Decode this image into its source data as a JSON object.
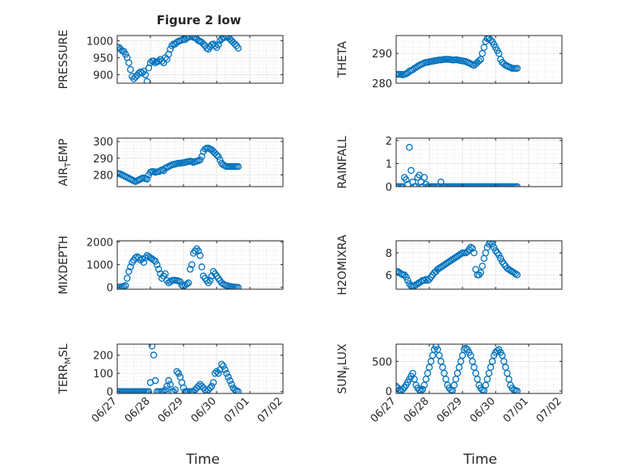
{
  "figure": {
    "title": "Figure 2 low",
    "xlabel": "Time"
  },
  "chart_data": [
    {
      "type": "scatter",
      "name": "pressure",
      "title": "Figure 2 low",
      "ylabel": {
        "main": "PRESSURE"
      },
      "xlim": [
        0,
        5
      ],
      "ylim": [
        875,
        1015
      ],
      "yticks": [
        900,
        950,
        1000
      ],
      "xtick_labels": [],
      "marker_color": "#0072BD",
      "grid": true,
      "x": [
        0,
        0.05,
        0.1,
        0.15,
        0.2,
        0.25,
        0.3,
        0.35,
        0.4,
        0.45,
        0.5,
        0.55,
        0.6,
        0.65,
        0.7,
        0.75,
        0.8,
        0.85,
        0.9,
        0.95,
        1,
        1.05,
        1.1,
        1.15,
        1.2,
        1.25,
        1.3,
        1.35,
        1.4,
        1.45,
        1.5,
        1.55,
        1.6,
        1.65,
        1.7,
        1.75,
        1.8,
        1.85,
        1.9,
        1.95,
        2,
        2.05,
        2.1,
        2.15,
        2.2,
        2.25,
        2.3,
        2.35,
        2.4,
        2.45,
        2.5,
        2.55,
        2.6,
        2.65,
        2.7,
        2.75,
        2.8,
        2.85,
        2.9,
        2.95,
        3,
        3.05,
        3.1,
        3.15,
        3.2,
        3.25,
        3.3,
        3.35,
        3.4,
        3.45,
        3.5,
        3.55,
        3.6,
        3.65
      ],
      "y": [
        980,
        980,
        975,
        970,
        968,
        960,
        950,
        935,
        915,
        895,
        888,
        893,
        898,
        904,
        908,
        905,
        910,
        900,
        880,
        920,
        935,
        940,
        940,
        935,
        938,
        940,
        945,
        940,
        935,
        950,
        945,
        960,
        975,
        985,
        990,
        990,
        995,
        998,
        1000,
        1002,
        1005,
        1003,
        1008,
        1010,
        1012,
        1013,
        1010,
        1008,
        1005,
        1000,
        998,
        995,
        990,
        985,
        978,
        975,
        982,
        988,
        990,
        985,
        980,
        988,
        1000,
        1005,
        1008,
        1010,
        1012,
        1010,
        1005,
        1000,
        995,
        990,
        985,
        978
      ]
    },
    {
      "type": "scatter",
      "name": "theta",
      "ylabel": {
        "main": "THETA"
      },
      "xlim": [
        0,
        5
      ],
      "ylim": [
        280,
        296
      ],
      "yticks": [
        280,
        290
      ],
      "xtick_labels": [],
      "marker_color": "#0072BD",
      "grid": true,
      "x": [
        0,
        0.05,
        0.1,
        0.15,
        0.2,
        0.25,
        0.3,
        0.35,
        0.4,
        0.45,
        0.5,
        0.55,
        0.6,
        0.65,
        0.7,
        0.75,
        0.8,
        0.85,
        0.9,
        0.95,
        1,
        1.05,
        1.1,
        1.15,
        1.2,
        1.25,
        1.3,
        1.35,
        1.4,
        1.45,
        1.5,
        1.55,
        1.6,
        1.65,
        1.7,
        1.75,
        1.8,
        1.85,
        1.9,
        1.95,
        2,
        2.05,
        2.1,
        2.15,
        2.2,
        2.25,
        2.3,
        2.35,
        2.4,
        2.45,
        2.5,
        2.55,
        2.6,
        2.65,
        2.7,
        2.75,
        2.8,
        2.85,
        2.9,
        2.95,
        3,
        3.05,
        3.1,
        3.15,
        3.2,
        3.25,
        3.3,
        3.35,
        3.4,
        3.45,
        3.5,
        3.55,
        3.6,
        3.65
      ],
      "y": [
        283,
        283,
        283,
        283,
        282.8,
        283,
        283.2,
        283.5,
        284,
        284.3,
        284.5,
        285,
        285.3,
        285.7,
        286,
        286.3,
        286.5,
        286.8,
        287,
        287,
        287.2,
        287.3,
        287.4,
        287.5,
        287.6,
        287.7,
        287.8,
        287.8,
        287.9,
        288,
        288,
        288,
        288,
        287.9,
        287.8,
        287.8,
        287.9,
        287.8,
        287.7,
        287.6,
        287.5,
        287.4,
        287.3,
        287,
        286.8,
        286.5,
        286.2,
        286,
        286.5,
        287,
        287.5,
        288,
        290,
        292,
        294,
        295,
        295,
        294.5,
        294,
        293,
        292,
        291,
        290,
        288,
        287,
        286.5,
        286,
        285.8,
        285.5,
        285.3,
        285,
        285,
        285,
        285
      ]
    },
    {
      "type": "scatter",
      "name": "air-temp",
      "ylabel": {
        "main": "AIR",
        "sub": "T",
        "rest": "EMP"
      },
      "xlim": [
        0,
        5
      ],
      "ylim": [
        273,
        302
      ],
      "yticks": [
        280,
        290,
        300
      ],
      "xtick_labels": [],
      "marker_color": "#0072BD",
      "grid": true,
      "x": [
        0,
        0.05,
        0.1,
        0.15,
        0.2,
        0.25,
        0.3,
        0.35,
        0.4,
        0.45,
        0.5,
        0.55,
        0.6,
        0.65,
        0.7,
        0.75,
        0.8,
        0.85,
        0.9,
        0.95,
        1,
        1.05,
        1.1,
        1.15,
        1.2,
        1.25,
        1.3,
        1.35,
        1.4,
        1.45,
        1.5,
        1.55,
        1.6,
        1.65,
        1.7,
        1.75,
        1.8,
        1.85,
        1.9,
        1.95,
        2,
        2.05,
        2.1,
        2.15,
        2.2,
        2.25,
        2.3,
        2.35,
        2.4,
        2.45,
        2.5,
        2.55,
        2.6,
        2.65,
        2.7,
        2.75,
        2.8,
        2.85,
        2.9,
        2.95,
        3,
        3.05,
        3.1,
        3.15,
        3.2,
        3.25,
        3.3,
        3.35,
        3.4,
        3.45,
        3.5,
        3.55,
        3.6,
        3.65
      ],
      "y": [
        281,
        280.8,
        280.5,
        280,
        279.5,
        279,
        278.5,
        278,
        277.5,
        277,
        276.5,
        276,
        276.5,
        277,
        277.5,
        278,
        278.2,
        277.8,
        277.5,
        280,
        281.5,
        282,
        282,
        281.5,
        281.8,
        282,
        282.5,
        283,
        282.5,
        284,
        284.5,
        285,
        285.5,
        286,
        286.3,
        286.5,
        286.8,
        287,
        287,
        287.2,
        287.3,
        287.5,
        287.8,
        288,
        288.2,
        288,
        287.5,
        288,
        288.2,
        288.5,
        289,
        291,
        294,
        295.5,
        296,
        296,
        295.5,
        295,
        294,
        293,
        292,
        291,
        289,
        287,
        286,
        285.5,
        285,
        285,
        285,
        285,
        285,
        285,
        285,
        285
      ]
    },
    {
      "type": "scatter",
      "name": "rainfall",
      "ylabel": {
        "main": "RAINFALL"
      },
      "xlim": [
        0,
        5
      ],
      "ylim": [
        0,
        2.1
      ],
      "yticks": [
        0,
        1,
        2
      ],
      "xtick_labels": [],
      "marker_color": "#0072BD",
      "grid": true,
      "x": [
        0,
        0.05,
        0.1,
        0.15,
        0.2,
        0.25,
        0.3,
        0.35,
        0.4,
        0.45,
        0.5,
        0.55,
        0.6,
        0.65,
        0.7,
        0.75,
        0.8,
        0.85,
        0.9,
        0.95,
        1,
        1.05,
        1.1,
        1.15,
        1.2,
        1.25,
        1.3,
        1.35,
        1.4,
        1.45,
        1.5,
        1.55,
        1.6,
        1.65,
        1.7,
        1.75,
        1.8,
        1.85,
        1.9,
        1.95,
        2,
        2.05,
        2.1,
        2.15,
        2.2,
        2.25,
        2.3,
        2.35,
        2.4,
        2.45,
        2.5,
        2.55,
        2.6,
        2.65,
        2.7,
        2.75,
        2.8,
        2.85,
        2.9,
        2.95,
        3,
        3.05,
        3.1,
        3.15,
        3.2,
        3.25,
        3.3,
        3.35,
        3.4,
        3.45,
        3.5,
        3.55,
        3.6,
        3.65
      ],
      "y": [
        0,
        0,
        0,
        0,
        0,
        0.4,
        0.3,
        0.1,
        1.7,
        0.7,
        0.2,
        0,
        0,
        0.4,
        0.5,
        0.2,
        0,
        0.4,
        0.1,
        0,
        0,
        0,
        0,
        0,
        0,
        0,
        0,
        0.2,
        0,
        0,
        0,
        0,
        0,
        0,
        0,
        0,
        0,
        0,
        0,
        0,
        0,
        0,
        0,
        0,
        0,
        0,
        0,
        0,
        0,
        0,
        0,
        0,
        0,
        0,
        0,
        0,
        0,
        0,
        0,
        0,
        0,
        0,
        0,
        0,
        0,
        0,
        0,
        0,
        0,
        0,
        0,
        0,
        0,
        0
      ]
    },
    {
      "type": "scatter",
      "name": "mixdepth",
      "ylabel": {
        "main": "MIXDEPTH"
      },
      "xlim": [
        0,
        5
      ],
      "ylim": [
        -80,
        2050
      ],
      "yticks": [
        0,
        1000,
        2000
      ],
      "xtick_labels": [],
      "marker_color": "#0072BD",
      "grid": true,
      "x": [
        0,
        0.05,
        0.1,
        0.15,
        0.2,
        0.25,
        0.3,
        0.35,
        0.4,
        0.45,
        0.5,
        0.55,
        0.6,
        0.65,
        0.7,
        0.75,
        0.8,
        0.85,
        0.9,
        0.95,
        1,
        1.05,
        1.1,
        1.15,
        1.2,
        1.25,
        1.3,
        1.35,
        1.4,
        1.45,
        1.5,
        1.55,
        1.6,
        1.65,
        1.7,
        1.75,
        1.8,
        1.85,
        1.9,
        1.95,
        2,
        2.05,
        2.1,
        2.15,
        2.2,
        2.25,
        2.3,
        2.35,
        2.4,
        2.45,
        2.5,
        2.55,
        2.6,
        2.65,
        2.7,
        2.75,
        2.8,
        2.85,
        2.9,
        2.95,
        3,
        3.05,
        3.1,
        3.15,
        3.2,
        3.25,
        3.3,
        3.35,
        3.4,
        3.45,
        3.5,
        3.55,
        3.6,
        3.65
      ],
      "y": [
        0,
        10,
        20,
        30,
        50,
        80,
        400,
        700,
        900,
        1100,
        1200,
        1300,
        1350,
        1300,
        1200,
        1250,
        1100,
        1300,
        1400,
        1350,
        1300,
        1250,
        1200,
        1150,
        1000,
        800,
        600,
        400,
        500,
        600,
        300,
        200,
        250,
        300,
        320,
        310,
        300,
        280,
        250,
        100,
        50,
        100,
        150,
        200,
        800,
        1000,
        1500,
        1600,
        1700,
        1600,
        1400,
        900,
        500,
        400,
        300,
        200,
        300,
        500,
        700,
        600,
        500,
        400,
        300,
        200,
        150,
        100,
        80,
        60,
        40,
        30,
        20,
        10,
        5,
        0
      ]
    },
    {
      "type": "scatter",
      "name": "h2omixra",
      "ylabel": {
        "main": "H2OMIXRA"
      },
      "xlim": [
        0,
        5
      ],
      "ylim": [
        4.7,
        9.1
      ],
      "yticks": [
        6,
        8
      ],
      "xtick_labels": [],
      "marker_color": "#0072BD",
      "grid": true,
      "x": [
        0,
        0.05,
        0.1,
        0.15,
        0.2,
        0.25,
        0.3,
        0.35,
        0.4,
        0.45,
        0.5,
        0.55,
        0.6,
        0.65,
        0.7,
        0.75,
        0.8,
        0.85,
        0.9,
        0.95,
        1,
        1.05,
        1.1,
        1.15,
        1.2,
        1.25,
        1.3,
        1.35,
        1.4,
        1.45,
        1.5,
        1.55,
        1.6,
        1.65,
        1.7,
        1.75,
        1.8,
        1.85,
        1.9,
        1.95,
        2,
        2.05,
        2.1,
        2.15,
        2.2,
        2.25,
        2.3,
        2.35,
        2.4,
        2.45,
        2.5,
        2.55,
        2.6,
        2.65,
        2.7,
        2.75,
        2.8,
        2.85,
        2.9,
        2.95,
        3,
        3.05,
        3.1,
        3.15,
        3.2,
        3.25,
        3.3,
        3.35,
        3.4,
        3.45,
        3.5,
        3.55,
        3.6,
        3.65
      ],
      "y": [
        6.3,
        6.3,
        6.2,
        6.1,
        6,
        6,
        5.8,
        5.5,
        5.2,
        5,
        5,
        5,
        5.1,
        5.2,
        5.3,
        5.4,
        5.5,
        5.5,
        5.6,
        5.5,
        5.6,
        5.8,
        6,
        6.2,
        6.3,
        6.5,
        6.6,
        6.7,
        6.8,
        6.9,
        7,
        7.1,
        7.2,
        7.3,
        7.4,
        7.5,
        7.6,
        7.7,
        7.8,
        7.9,
        8,
        8,
        8,
        8.1,
        8.3,
        8.5,
        8.4,
        8,
        6.5,
        6,
        6,
        6.2,
        6.8,
        7.5,
        8,
        8.5,
        8.8,
        9,
        8.8,
        8.5,
        8.2,
        8,
        7.8,
        7.5,
        7.2,
        7,
        6.8,
        6.6,
        6.5,
        6.4,
        6.3,
        6.2,
        6.1,
        6
      ]
    },
    {
      "type": "scatter",
      "name": "terrain-msl",
      "ylabel": {
        "main": "TERR",
        "sub": "M",
        "rest": "SL"
      },
      "xlim": [
        0,
        5
      ],
      "ylim": [
        -10,
        260
      ],
      "yticks": [
        0,
        100,
        200
      ],
      "xtick_labels": [
        "06/27",
        "06/28",
        "06/29",
        "06/30",
        "07/01",
        "07/02"
      ],
      "marker_color": "#0072BD",
      "grid": true,
      "x": [
        0,
        0.05,
        0.1,
        0.15,
        0.2,
        0.25,
        0.3,
        0.35,
        0.4,
        0.45,
        0.5,
        0.55,
        0.6,
        0.65,
        0.7,
        0.75,
        0.8,
        0.85,
        0.9,
        0.95,
        1,
        1.05,
        1.1,
        1.15,
        1.2,
        1.25,
        1.3,
        1.35,
        1.4,
        1.45,
        1.5,
        1.55,
        1.6,
        1.65,
        1.7,
        1.75,
        1.8,
        1.85,
        1.9,
        1.95,
        2,
        2.05,
        2.1,
        2.15,
        2.2,
        2.25,
        2.3,
        2.35,
        2.4,
        2.45,
        2.5,
        2.55,
        2.6,
        2.65,
        2.7,
        2.75,
        2.8,
        2.85,
        2.9,
        2.95,
        3,
        3.05,
        3.1,
        3.15,
        3.2,
        3.25,
        3.3,
        3.35,
        3.4,
        3.45,
        3.5,
        3.55,
        3.6,
        3.65
      ],
      "y": [
        0,
        0,
        0,
        0,
        0,
        0,
        0,
        0,
        0,
        0,
        0,
        0,
        0,
        0,
        0,
        0,
        0,
        0,
        0,
        0,
        50,
        250,
        200,
        60,
        0,
        0,
        0,
        0,
        0,
        10,
        30,
        60,
        40,
        0,
        0,
        10,
        110,
        100,
        80,
        50,
        20,
        0,
        0,
        0,
        0,
        0,
        0,
        10,
        20,
        30,
        40,
        30,
        20,
        10,
        0,
        10,
        20,
        30,
        50,
        100,
        110,
        100,
        120,
        150,
        140,
        120,
        100,
        80,
        60,
        40,
        20,
        10,
        5,
        0
      ]
    },
    {
      "type": "scatter",
      "name": "sun-flux",
      "ylabel": {
        "main": "SUN",
        "sub": "F",
        "rest": "LUX"
      },
      "xlim": [
        0,
        5
      ],
      "ylim": [
        -40,
        790
      ],
      "yticks": [
        0,
        500
      ],
      "xtick_labels": [
        "06/27",
        "06/28",
        "06/29",
        "06/30",
        "07/01",
        "07/02"
      ],
      "marker_color": "#0072BD",
      "grid": true,
      "x": [
        0,
        0.05,
        0.1,
        0.15,
        0.2,
        0.25,
        0.3,
        0.35,
        0.4,
        0.45,
        0.5,
        0.55,
        0.6,
        0.65,
        0.7,
        0.75,
        0.8,
        0.85,
        0.9,
        0.95,
        1,
        1.05,
        1.1,
        1.15,
        1.2,
        1.25,
        1.3,
        1.35,
        1.4,
        1.45,
        1.5,
        1.55,
        1.6,
        1.65,
        1.7,
        1.75,
        1.8,
        1.85,
        1.9,
        1.95,
        2,
        2.05,
        2.1,
        2.15,
        2.2,
        2.25,
        2.3,
        2.35,
        2.4,
        2.45,
        2.5,
        2.55,
        2.6,
        2.65,
        2.7,
        2.75,
        2.8,
        2.85,
        2.9,
        2.95,
        3,
        3.05,
        3.1,
        3.15,
        3.2,
        3.25,
        3.3,
        3.35,
        3.4,
        3.45,
        3.5,
        3.55,
        3.6,
        3.65
      ],
      "y": [
        80,
        50,
        20,
        10,
        30,
        60,
        100,
        150,
        200,
        250,
        300,
        200,
        100,
        50,
        20,
        10,
        30,
        100,
        200,
        300,
        400,
        500,
        600,
        700,
        750,
        700,
        600,
        500,
        400,
        300,
        200,
        100,
        50,
        20,
        10,
        100,
        200,
        300,
        400,
        500,
        600,
        700,
        720,
        700,
        650,
        600,
        500,
        400,
        300,
        200,
        100,
        50,
        20,
        10,
        100,
        200,
        300,
        400,
        500,
        600,
        650,
        680,
        700,
        650,
        600,
        500,
        400,
        300,
        200,
        100,
        50,
        20,
        10,
        0
      ]
    }
  ]
}
